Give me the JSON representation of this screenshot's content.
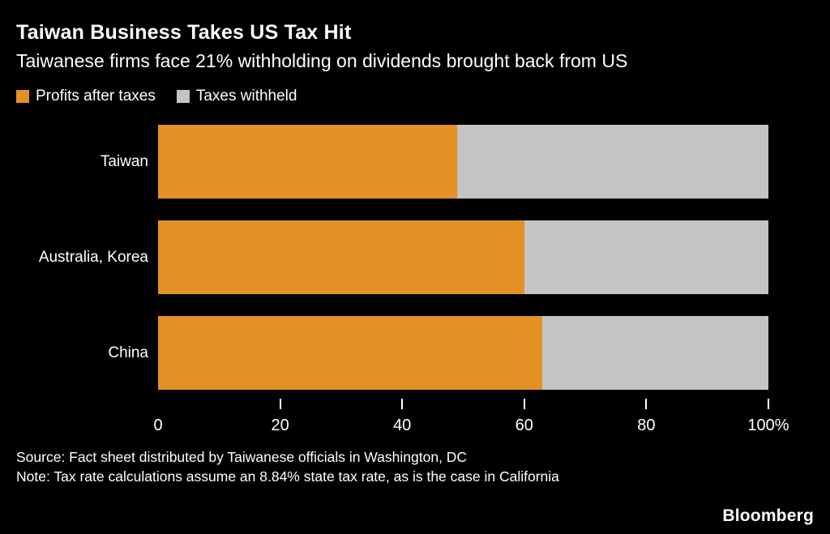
{
  "header": {
    "title": "Taiwan Business Takes US Tax Hit",
    "subtitle": "Taiwanese firms face 21% withholding on dividends brought back from US"
  },
  "legend": {
    "items": [
      {
        "label": "Profits after taxes",
        "color": "#E39126"
      },
      {
        "label": "Taxes withheld",
        "color": "#C4C4C4"
      }
    ]
  },
  "chart_data": {
    "type": "bar",
    "orientation": "horizontal",
    "stacked": true,
    "title": "Taiwan Business Takes US Tax Hit",
    "subtitle": "Taiwanese firms face 21% withholding on dividends brought back from US",
    "categories": [
      "Taiwan",
      "Australia, Korea",
      "China"
    ],
    "series": [
      {
        "name": "Profits after taxes",
        "color": "#E39126",
        "values": [
          49,
          60,
          63
        ]
      },
      {
        "name": "Taxes withheld",
        "color": "#C4C4C4",
        "values": [
          51,
          40,
          37
        ]
      }
    ],
    "xlim": [
      0,
      100
    ],
    "xlabel": "",
    "ylabel": "",
    "grid": false,
    "legend_position": "top-left",
    "ticks": [
      {
        "pos": 0,
        "label": "0",
        "mark": false
      },
      {
        "pos": 20,
        "label": "20",
        "mark": true
      },
      {
        "pos": 40,
        "label": "40",
        "mark": true
      },
      {
        "pos": 60,
        "label": "60",
        "mark": true
      },
      {
        "pos": 80,
        "label": "80",
        "mark": true
      },
      {
        "pos": 100,
        "label": "100%",
        "mark": true
      }
    ]
  },
  "footer": {
    "source": "Source: Fact sheet distributed by Taiwanese officials in Washington, DC",
    "note": "Note: Tax rate calculations assume an 8.84% state tax rate, as is the case in California",
    "brand": "Bloomberg"
  }
}
